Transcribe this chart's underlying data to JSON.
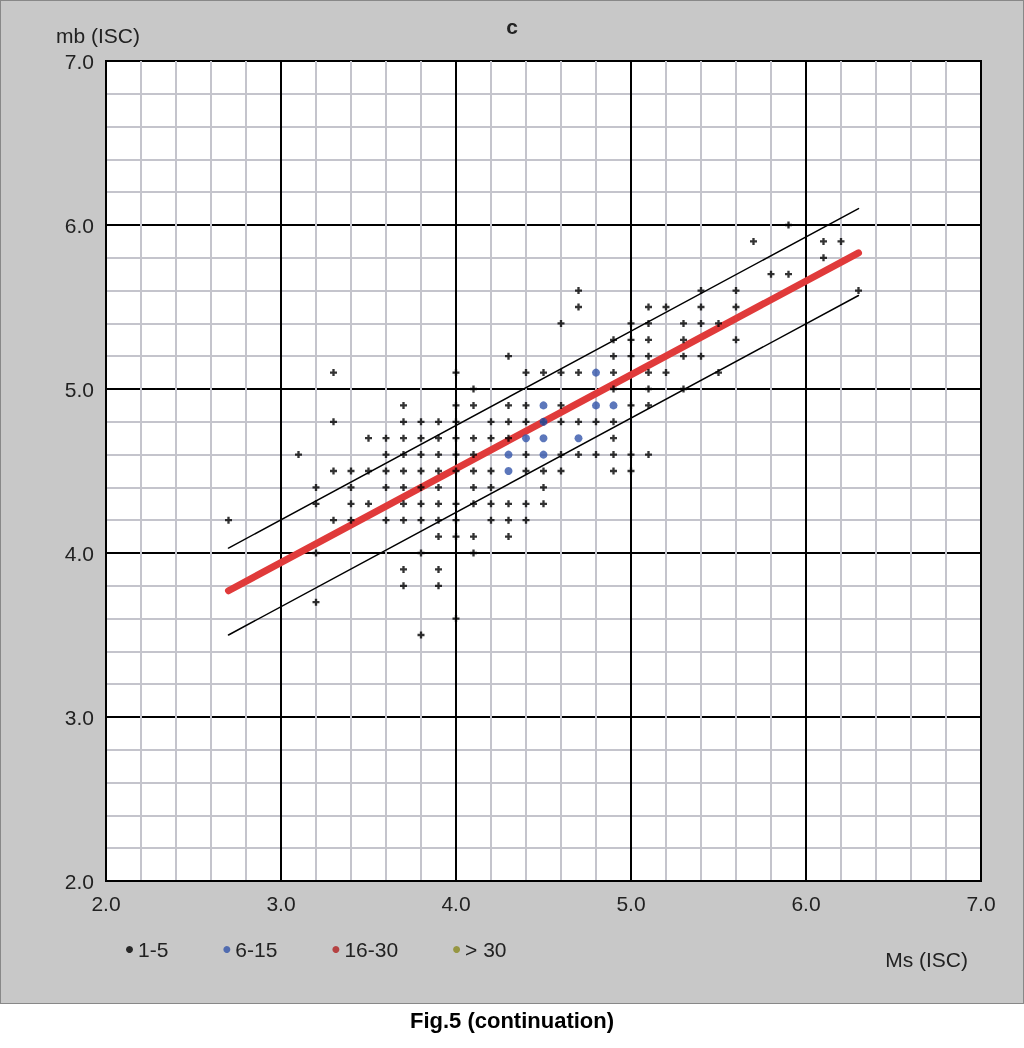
{
  "chart_data": {
    "type": "scatter",
    "title": "c",
    "xlabel": "Ms (ISC)",
    "ylabel": "mb (ISC)",
    "annotations": [
      "Fig.5 (continuation)"
    ],
    "xlim": [
      2,
      7
    ],
    "ylim": [
      2,
      7
    ],
    "xticks": [
      {
        "value": 2,
        "label": "2.0"
      },
      {
        "value": 2.2,
        "label": null
      },
      {
        "value": 2.4,
        "label": null
      },
      {
        "value": 2.6,
        "label": null
      },
      {
        "value": 2.8,
        "label": null
      },
      {
        "value": 3,
        "label": "3.0"
      },
      {
        "value": 3.2,
        "label": null
      },
      {
        "value": 3.4,
        "label": null
      },
      {
        "value": 3.6,
        "label": null
      },
      {
        "value": 3.8,
        "label": null
      },
      {
        "value": 4,
        "label": "4.0"
      },
      {
        "value": 4.2,
        "label": null
      },
      {
        "value": 4.4,
        "label": null
      },
      {
        "value": 4.6,
        "label": null
      },
      {
        "value": 4.8,
        "label": null
      },
      {
        "value": 5,
        "label": "5.0"
      },
      {
        "value": 5.2,
        "label": null
      },
      {
        "value": 5.4,
        "label": null
      },
      {
        "value": 5.6,
        "label": null
      },
      {
        "value": 5.8,
        "label": null
      },
      {
        "value": 6,
        "label": "6.0"
      },
      {
        "value": 6.2,
        "label": null
      },
      {
        "value": 6.4,
        "label": null
      },
      {
        "value": 6.6,
        "label": null
      },
      {
        "value": 6.8,
        "label": null
      },
      {
        "value": 7,
        "label": "7.0"
      }
    ],
    "yticks": [
      {
        "value": 2,
        "label": "2.0"
      },
      {
        "value": 2.2,
        "label": null
      },
      {
        "value": 2.4,
        "label": null
      },
      {
        "value": 2.6,
        "label": null
      },
      {
        "value": 2.8,
        "label": null
      },
      {
        "value": 3,
        "label": "3.0"
      },
      {
        "value": 3.2,
        "label": null
      },
      {
        "value": 3.4,
        "label": null
      },
      {
        "value": 3.6,
        "label": null
      },
      {
        "value": 3.8,
        "label": null
      },
      {
        "value": 4,
        "label": "4.0"
      },
      {
        "value": 4.2,
        "label": null
      },
      {
        "value": 4.4,
        "label": null
      },
      {
        "value": 4.6,
        "label": null
      },
      {
        "value": 4.8,
        "label": null
      },
      {
        "value": 5,
        "label": "5.0"
      },
      {
        "value": 5.2,
        "label": null
      },
      {
        "value": 5.4,
        "label": null
      },
      {
        "value": 5.6,
        "label": null
      },
      {
        "value": 5.8,
        "label": null
      },
      {
        "value": 6,
        "label": "6.0"
      },
      {
        "value": 6.2,
        "label": null
      },
      {
        "value": 6.4,
        "label": null
      },
      {
        "value": 6.6,
        "label": null
      },
      {
        "value": 6.8,
        "label": null
      },
      {
        "value": 7,
        "label": "7.0"
      }
    ],
    "grid": true,
    "legend": "bottom left",
    "series": [
      {
        "name": "1-5",
        "color": "#000000",
        "marker": "cross",
        "x": [
          2.7,
          3.1,
          3.2,
          3.2,
          3.2,
          3.2,
          3.3,
          3.3,
          3.3,
          3.3,
          3.4,
          3.4,
          3.4,
          3.4,
          3.5,
          3.5,
          3.5,
          3.6,
          3.6,
          3.6,
          3.6,
          3.6,
          3.7,
          3.7,
          3.7,
          3.7,
          3.7,
          3.7,
          3.7,
          3.7,
          3.7,
          3.7,
          3.8,
          3.8,
          3.8,
          3.8,
          3.8,
          3.8,
          3.8,
          3.8,
          3.8,
          3.9,
          3.9,
          3.9,
          3.9,
          3.9,
          3.9,
          3.9,
          3.9,
          3.9,
          3.9,
          4.0,
          4.0,
          4.0,
          4.0,
          4.0,
          4.0,
          4.0,
          4.0,
          4.0,
          4.0,
          4.1,
          4.1,
          4.1,
          4.1,
          4.1,
          4.1,
          4.1,
          4.1,
          4.1,
          4.2,
          4.2,
          4.2,
          4.2,
          4.2,
          4.2,
          4.3,
          4.3,
          4.3,
          4.3,
          4.3,
          4.3,
          4.3,
          4.4,
          4.4,
          4.4,
          4.4,
          4.4,
          4.4,
          4.4,
          4.5,
          4.5,
          4.5,
          4.5,
          4.5,
          4.6,
          4.6,
          4.6,
          4.6,
          4.6,
          4.6,
          4.7,
          4.7,
          4.7,
          4.7,
          4.7,
          4.8,
          4.8,
          4.9,
          4.9,
          4.9,
          4.9,
          4.9,
          4.9,
          4.9,
          4.9,
          5.0,
          5.0,
          5.0,
          5.0,
          5.0,
          5.0,
          5.1,
          5.1,
          5.1,
          5.1,
          5.1,
          5.1,
          5.1,
          5.1,
          5.2,
          5.2,
          5.3,
          5.3,
          5.3,
          5.3,
          5.4,
          5.4,
          5.4,
          5.4,
          5.5,
          5.5,
          5.6,
          5.6,
          5.6,
          5.7,
          5.8,
          5.9,
          5.9,
          6.1,
          6.1,
          6.2,
          6.3
        ],
        "values": [
          4.2,
          4.6,
          4.4,
          4.3,
          4.0,
          3.7,
          5.1,
          4.8,
          4.5,
          4.2,
          4.5,
          4.4,
          4.3,
          4.2,
          4.7,
          4.5,
          4.3,
          4.7,
          4.6,
          4.5,
          4.4,
          4.2,
          4.9,
          4.8,
          4.7,
          4.6,
          4.5,
          4.4,
          4.3,
          4.2,
          3.9,
          3.8,
          4.8,
          4.7,
          4.6,
          4.5,
          4.4,
          4.3,
          4.2,
          4.0,
          3.5,
          4.8,
          4.7,
          4.6,
          4.5,
          4.4,
          4.3,
          4.2,
          4.1,
          3.9,
          3.8,
          5.1,
          4.9,
          4.8,
          4.7,
          4.6,
          4.5,
          4.3,
          4.2,
          4.1,
          3.6,
          5.0,
          4.9,
          4.7,
          4.6,
          4.5,
          4.4,
          4.3,
          4.1,
          4.0,
          4.8,
          4.7,
          4.5,
          4.4,
          4.3,
          4.2,
          5.2,
          4.9,
          4.8,
          4.7,
          4.3,
          4.2,
          4.1,
          5.1,
          4.9,
          4.8,
          4.6,
          4.5,
          4.3,
          4.2,
          5.1,
          4.8,
          4.5,
          4.4,
          4.3,
          5.4,
          5.1,
          4.9,
          4.8,
          4.6,
          4.5,
          5.6,
          5.5,
          5.1,
          4.8,
          4.6,
          4.8,
          4.6,
          5.3,
          5.2,
          5.1,
          5.0,
          4.8,
          4.7,
          4.6,
          4.5,
          5.4,
          5.3,
          5.2,
          4.9,
          4.6,
          4.5,
          5.5,
          5.4,
          5.3,
          5.2,
          5.1,
          5.0,
          4.9,
          4.6,
          5.5,
          5.1,
          5.4,
          5.3,
          5.2,
          5.0,
          5.6,
          5.5,
          5.4,
          5.2,
          5.4,
          5.1,
          5.6,
          5.5,
          5.3,
          5.9,
          5.7,
          6.0,
          5.7,
          5.9,
          5.8,
          5.9,
          5.6
        ]
      },
      {
        "name": "6-15",
        "color": "#3355aa",
        "marker": "circle",
        "x": [
          4.8,
          4.5,
          4.8,
          4.9,
          4.5,
          4.4,
          4.5,
          4.7,
          4.3,
          4.5,
          4.3
        ],
        "values": [
          5.1,
          4.9,
          4.9,
          4.9,
          4.8,
          4.7,
          4.7,
          4.7,
          4.6,
          4.6,
          4.5
        ]
      },
      {
        "name": "16-30",
        "color": "#b02020",
        "marker": "circle"
      },
      {
        "name": "> 30",
        "color": "#8a8a20",
        "marker": "circle"
      },
      {
        "type": "line",
        "color": "#000000",
        "line_style": "solid",
        "marker": "none",
        "x": [
          2.7,
          6.3
        ],
        "values": [
          4.03,
          6.1
        ]
      },
      {
        "type": "line",
        "color": "#000000",
        "line_style": "solid",
        "marker": "none",
        "x": [
          2.7,
          6.3
        ],
        "values": [
          3.5,
          5.57
        ]
      },
      {
        "type": "line",
        "color": "#e03a3a",
        "line_style": "solid",
        "marker": "none",
        "x": [
          2.7,
          6.3
        ],
        "values": [
          3.77,
          5.83
        ]
      }
    ]
  }
}
